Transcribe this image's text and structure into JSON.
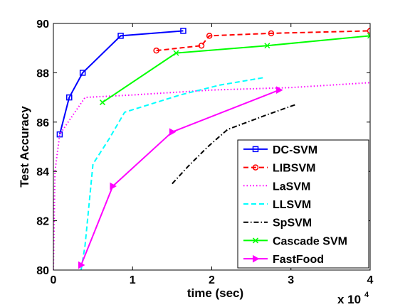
{
  "chart_data": {
    "type": "line",
    "title": "",
    "xlabel": "time (sec)",
    "ylabel": "Test Accuracy",
    "x_multiplier_label": "x 10",
    "x_multiplier_exp": "4",
    "xlim": [
      0,
      40000
    ],
    "ylim": [
      80,
      90
    ],
    "xticks": [
      0,
      10000,
      20000,
      30000,
      40000
    ],
    "xtick_labels": [
      "0",
      "1",
      "2",
      "3",
      "4"
    ],
    "yticks": [
      80,
      82,
      84,
      86,
      88,
      90
    ],
    "ytick_labels": [
      "80",
      "82",
      "84",
      "86",
      "88",
      "90"
    ],
    "grid": false,
    "legend_position": "bottom-right",
    "series": [
      {
        "name": "DC-SVM",
        "color": "#0000ff",
        "dash": "solid",
        "marker": "square",
        "x": [
          800,
          2000,
          3700,
          8500,
          16400
        ],
        "y": [
          85.5,
          87.0,
          88.0,
          89.5,
          89.7
        ]
      },
      {
        "name": "LIBSVM",
        "color": "#ff0000",
        "dash": "dashed",
        "marker": "circle",
        "x": [
          13000,
          18700,
          19700,
          27500,
          40000
        ],
        "y": [
          88.9,
          89.1,
          89.5,
          89.6,
          89.7
        ]
      },
      {
        "name": "LaSVM",
        "color": "#ff00ff",
        "dash": "dotted",
        "marker": "none",
        "x": [
          0,
          200,
          800,
          2500,
          4000,
          10000,
          20000,
          30000,
          40000
        ],
        "y": [
          80.0,
          84.0,
          85.5,
          86.3,
          87.0,
          87.1,
          87.3,
          87.4,
          87.6
        ]
      },
      {
        "name": "LLSVM",
        "color": "#00ffff",
        "dash": "dashed",
        "marker": "none",
        "x": [
          3500,
          4000,
          5000,
          7000,
          9000,
          11000,
          16000,
          21000,
          26500
        ],
        "y": [
          80.0,
          81.0,
          84.3,
          85.3,
          86.4,
          86.6,
          87.1,
          87.5,
          87.8
        ]
      },
      {
        "name": "SpSVM",
        "color": "#000000",
        "dash": "dashdot",
        "marker": "none",
        "x": [
          15000,
          17000,
          19500,
          22000,
          27000,
          30500
        ],
        "y": [
          83.5,
          84.2,
          85.0,
          85.7,
          86.3,
          86.7
        ]
      },
      {
        "name": "Cascade SVM",
        "color": "#00ff00",
        "dash": "solid",
        "marker": "x",
        "x": [
          6200,
          15500,
          27000,
          40000
        ],
        "y": [
          86.8,
          88.8,
          89.1,
          89.5
        ]
      },
      {
        "name": "FastFood",
        "color": "#ff00ff",
        "dash": "solid",
        "marker": "triangle-right",
        "x": [
          3500,
          7500,
          15000,
          28500
        ],
        "y": [
          80.2,
          83.4,
          85.6,
          87.3
        ]
      }
    ]
  }
}
